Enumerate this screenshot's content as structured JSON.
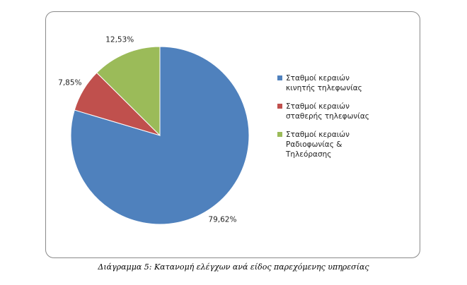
{
  "chart_data": {
    "type": "pie",
    "series": [
      {
        "name": "Σταθμοί κεραιών κινητής τηλεφωνίας",
        "value": 79.62,
        "label": "79,62%",
        "color": "#4F81BD"
      },
      {
        "name": "Σταθμοί κεραιών σταθερής τηλεφωνίας",
        "value": 7.85,
        "label": "7,85%",
        "color": "#C0504D"
      },
      {
        "name": "Σταθμοί κεραιών Ραδιοφωνίας & Τηλεόρασης",
        "value": 12.53,
        "label": "12,53%",
        "color": "#9BBB59"
      }
    ],
    "legend_position": "right"
  },
  "legend": {
    "items": [
      {
        "line1": "Σταθμοί κεραιών",
        "line2": "κινητής τηλεφωνίας"
      },
      {
        "line1": "Σταθμοί κεραιών",
        "line2": "σταθερής τηλεφωνίας"
      },
      {
        "line1": "Σταθμοί κεραιών",
        "line2": "Ραδιοφωνίας &",
        "line3": "Τηλεόρασης"
      }
    ]
  },
  "caption": "Διάγραμμα 5: Κατανομή ελέγχων ανά είδος παρεχόμενης υπηρεσίας"
}
